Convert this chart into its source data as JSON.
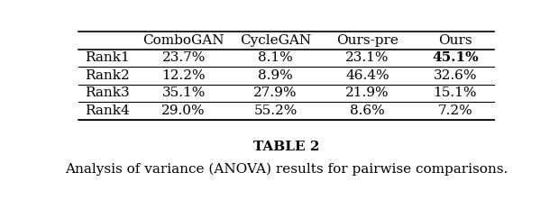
{
  "col_headers": [
    "",
    "ComboGAN",
    "CycleGAN",
    "Ours-pre",
    "Ours"
  ],
  "rows": [
    [
      "Rank1",
      "23.7%",
      "8.1%",
      "23.1%",
      "45.1%"
    ],
    [
      "Rank2",
      "12.2%",
      "8.9%",
      "46.4%",
      "32.6%"
    ],
    [
      "Rank3",
      "35.1%",
      "27.9%",
      "21.9%",
      "15.1%"
    ],
    [
      "Rank4",
      "29.0%",
      "55.2%",
      "8.6%",
      "7.2%"
    ]
  ],
  "bold_cells": [
    [
      0,
      4
    ]
  ],
  "caption_title": "TABLE 2",
  "caption_text": "Analysis of variance (ANOVA) results for pairwise comparisons.",
  "bg_color": "#ffffff",
  "text_color": "#000000",
  "font_size": 11,
  "caption_title_fontsize": 11,
  "caption_text_fontsize": 11
}
